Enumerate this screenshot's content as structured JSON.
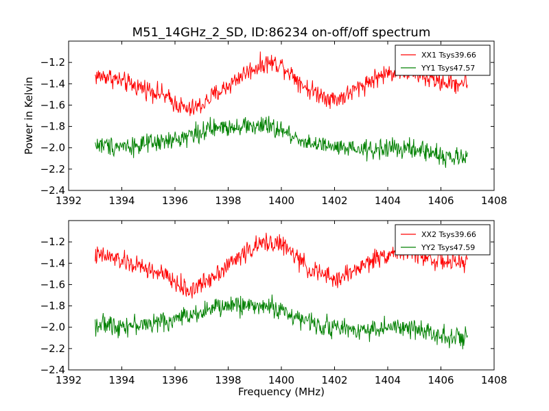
{
  "figure": {
    "title": "M51_14GHz_2_SD, ID:86234 on-off/off spectrum",
    "ylabel": "Power in Kelvin",
    "xlabel": "Frequency (MHz)"
  },
  "chart_data": [
    {
      "type": "line",
      "xlim": [
        1392,
        1408
      ],
      "ylim": [
        -2.4,
        -1.0
      ],
      "xticks": [
        1392,
        1394,
        1396,
        1398,
        1400,
        1402,
        1404,
        1406,
        1408
      ],
      "xtick_labels": [
        "1392",
        "1394",
        "1396",
        "1398",
        "1400",
        "1402",
        "1404",
        "1406",
        "1408"
      ],
      "yticks": [
        -2.4,
        -2.2,
        -2.0,
        -1.8,
        -1.6,
        -1.4,
        -1.2
      ],
      "ytick_labels": [
        "−2.4",
        "−2.2",
        "−2.0",
        "−1.8",
        "−1.6",
        "−1.4",
        "−1.2"
      ],
      "legend_position": "top-right",
      "x_range": [
        1393.0,
        1407.0
      ],
      "series": [
        {
          "name": "XX1 Tsys39.66",
          "color": "#ff0000",
          "x": [
            1393.0,
            1393.5,
            1394.0,
            1394.5,
            1395.0,
            1395.5,
            1396.0,
            1396.5,
            1397.0,
            1397.5,
            1398.0,
            1398.5,
            1399.0,
            1399.5,
            1400.0,
            1400.5,
            1401.0,
            1401.5,
            1402.0,
            1402.5,
            1403.0,
            1403.5,
            1404.0,
            1404.5,
            1405.0,
            1405.5,
            1406.0,
            1406.5,
            1407.0
          ],
          "y": [
            -1.33,
            -1.33,
            -1.38,
            -1.42,
            -1.45,
            -1.5,
            -1.58,
            -1.65,
            -1.6,
            -1.5,
            -1.42,
            -1.32,
            -1.25,
            -1.2,
            -1.22,
            -1.33,
            -1.45,
            -1.5,
            -1.55,
            -1.5,
            -1.42,
            -1.35,
            -1.3,
            -1.28,
            -1.3,
            -1.35,
            -1.38,
            -1.4,
            -1.38
          ]
        },
        {
          "name": "YY1 Tsys47.57",
          "color": "#008000",
          "x": [
            1393.0,
            1393.5,
            1394.0,
            1394.5,
            1395.0,
            1395.5,
            1396.0,
            1396.5,
            1397.0,
            1397.5,
            1398.0,
            1398.5,
            1399.0,
            1399.5,
            1400.0,
            1400.5,
            1401.0,
            1401.5,
            1402.0,
            1402.5,
            1403.0,
            1403.5,
            1404.0,
            1404.5,
            1405.0,
            1405.5,
            1406.0,
            1406.5,
            1407.0
          ],
          "y": [
            -1.97,
            -1.98,
            -1.98,
            -1.98,
            -1.97,
            -1.95,
            -1.93,
            -1.88,
            -1.85,
            -1.82,
            -1.8,
            -1.79,
            -1.8,
            -1.8,
            -1.84,
            -1.9,
            -1.95,
            -1.98,
            -2.0,
            -2.02,
            -2.02,
            -2.02,
            -2.0,
            -2.01,
            -2.02,
            -2.03,
            -2.07,
            -2.1,
            -2.1
          ]
        }
      ]
    },
    {
      "type": "line",
      "xlim": [
        1392,
        1408
      ],
      "ylim": [
        -2.4,
        -1.0
      ],
      "xticks": [
        1392,
        1394,
        1396,
        1398,
        1400,
        1402,
        1404,
        1406,
        1408
      ],
      "xtick_labels": [
        "1392",
        "1394",
        "1396",
        "1398",
        "1400",
        "1402",
        "1404",
        "1406",
        "1408"
      ],
      "yticks": [
        -2.4,
        -2.2,
        -2.0,
        -1.8,
        -1.6,
        -1.4,
        -1.2
      ],
      "ytick_labels": [
        "−2.4",
        "−2.2",
        "−2.0",
        "−1.8",
        "−1.6",
        "−1.4",
        "−1.2"
      ],
      "legend_position": "top-right",
      "x_range": [
        1393.0,
        1407.0
      ],
      "series": [
        {
          "name": "XX2 Tsys39.66",
          "color": "#ff0000",
          "x": [
            1393.0,
            1393.5,
            1394.0,
            1394.5,
            1395.0,
            1395.5,
            1396.0,
            1396.5,
            1397.0,
            1397.5,
            1398.0,
            1398.5,
            1399.0,
            1399.5,
            1400.0,
            1400.5,
            1401.0,
            1401.5,
            1402.0,
            1402.5,
            1403.0,
            1403.5,
            1404.0,
            1404.5,
            1405.0,
            1405.5,
            1406.0,
            1406.5,
            1407.0
          ],
          "y": [
            -1.33,
            -1.34,
            -1.38,
            -1.42,
            -1.46,
            -1.5,
            -1.58,
            -1.66,
            -1.6,
            -1.5,
            -1.42,
            -1.32,
            -1.25,
            -1.2,
            -1.22,
            -1.33,
            -1.45,
            -1.5,
            -1.56,
            -1.5,
            -1.43,
            -1.36,
            -1.31,
            -1.28,
            -1.3,
            -1.35,
            -1.38,
            -1.4,
            -1.38
          ]
        },
        {
          "name": "YY2 Tsys47.59",
          "color": "#008000",
          "x": [
            1393.0,
            1393.5,
            1394.0,
            1394.5,
            1395.0,
            1395.5,
            1396.0,
            1396.5,
            1397.0,
            1397.5,
            1398.0,
            1398.5,
            1399.0,
            1399.5,
            1400.0,
            1400.5,
            1401.0,
            1401.5,
            1402.0,
            1402.5,
            1403.0,
            1403.5,
            1404.0,
            1404.5,
            1405.0,
            1405.5,
            1406.0,
            1406.5,
            1407.0
          ],
          "y": [
            -1.97,
            -1.98,
            -1.98,
            -1.98,
            -1.97,
            -1.95,
            -1.93,
            -1.88,
            -1.85,
            -1.82,
            -1.8,
            -1.79,
            -1.8,
            -1.8,
            -1.84,
            -1.9,
            -1.95,
            -1.98,
            -2.0,
            -2.02,
            -2.02,
            -2.02,
            -2.0,
            -2.01,
            -2.02,
            -2.03,
            -2.07,
            -2.1,
            -2.1
          ]
        }
      ]
    }
  ]
}
